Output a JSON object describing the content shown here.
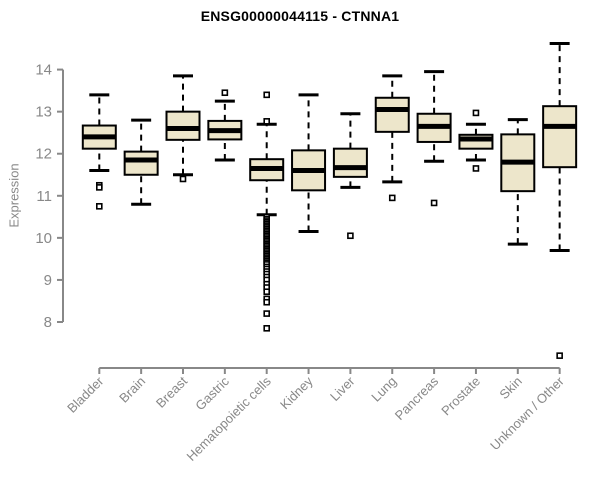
{
  "chart_data": {
    "type": "boxplot",
    "title": "ENSG00000044115 - CTNNA1",
    "ylabel": "Expression",
    "xlabel": "",
    "ylim": [
      7.0,
      14.8
    ],
    "yticks": [
      8,
      9,
      10,
      11,
      12,
      13,
      14
    ],
    "grid": false,
    "legend_position": "none",
    "categories": [
      "Bladder",
      "Brain",
      "Breast",
      "Gastric",
      "Hematopoietic cells",
      "Kidney",
      "Liver",
      "Lung",
      "Pancreas",
      "Prostate",
      "Skin",
      "Unknown / Other"
    ],
    "boxes": [
      {
        "category": "Bladder",
        "whisker_low": 11.6,
        "q1": 12.12,
        "median": 12.4,
        "q3": 12.67,
        "whisker_high": 13.4,
        "outliers": [
          11.25,
          11.2,
          10.75
        ]
      },
      {
        "category": "Brain",
        "whisker_low": 10.8,
        "q1": 11.5,
        "median": 11.85,
        "q3": 12.05,
        "whisker_high": 12.8,
        "outliers": []
      },
      {
        "category": "Breast",
        "whisker_low": 11.5,
        "q1": 12.33,
        "median": 12.6,
        "q3": 13.0,
        "whisker_high": 13.85,
        "outliers": [
          11.4
        ]
      },
      {
        "category": "Gastric",
        "whisker_low": 11.85,
        "q1": 12.34,
        "median": 12.55,
        "q3": 12.78,
        "whisker_high": 13.25,
        "outliers": [
          13.45
        ]
      },
      {
        "category": "Hematopoietic cells",
        "whisker_low": 10.55,
        "q1": 11.37,
        "median": 11.65,
        "q3": 11.87,
        "whisker_high": 12.7,
        "outliers": [
          13.4,
          12.77,
          10.5,
          10.45,
          10.41,
          10.37,
          10.33,
          10.29,
          10.25,
          10.21,
          10.17,
          10.13,
          10.09,
          10.05,
          10.01,
          9.97,
          9.93,
          9.89,
          9.85,
          9.81,
          9.77,
          9.73,
          9.69,
          9.65,
          9.61,
          9.57,
          9.53,
          9.49,
          9.45,
          9.41,
          9.37,
          9.31,
          9.26,
          9.2,
          9.14,
          9.07,
          9.0,
          8.9,
          8.82,
          8.72,
          8.55,
          8.47,
          8.2,
          7.85
        ]
      },
      {
        "category": "Kidney",
        "whisker_low": 10.15,
        "q1": 11.13,
        "median": 11.6,
        "q3": 12.08,
        "whisker_high": 13.4,
        "outliers": []
      },
      {
        "category": "Liver",
        "whisker_low": 11.2,
        "q1": 11.45,
        "median": 11.67,
        "q3": 12.12,
        "whisker_high": 12.95,
        "outliers": [
          10.05
        ]
      },
      {
        "category": "Lung",
        "whisker_low": 11.33,
        "q1": 12.52,
        "median": 13.05,
        "q3": 13.33,
        "whisker_high": 13.85,
        "outliers": [
          10.95
        ]
      },
      {
        "category": "Pancreas",
        "whisker_low": 11.82,
        "q1": 12.28,
        "median": 12.65,
        "q3": 12.95,
        "whisker_high": 13.95,
        "outliers": [
          10.83
        ]
      },
      {
        "category": "Prostate",
        "whisker_low": 11.85,
        "q1": 12.12,
        "median": 12.35,
        "q3": 12.45,
        "whisker_high": 12.7,
        "outliers": [
          12.97,
          11.65
        ]
      },
      {
        "category": "Skin",
        "whisker_low": 9.85,
        "q1": 11.11,
        "median": 11.8,
        "q3": 12.46,
        "whisker_high": 12.81,
        "outliers": []
      },
      {
        "category": "Unknown / Other",
        "whisker_low": 9.7,
        "q1": 11.68,
        "median": 12.65,
        "q3": 13.13,
        "whisker_high": 14.62,
        "outliers": [
          7.2
        ]
      }
    ],
    "colors": {
      "box_fill": "#EDE6CB",
      "box_border": "#000000",
      "median": "#000000",
      "whisker": "#000000",
      "outlier": "#000000",
      "axis": "#888888",
      "tick_text": "#888888",
      "title_text": "#000000",
      "background": "#FFFFFF"
    }
  }
}
